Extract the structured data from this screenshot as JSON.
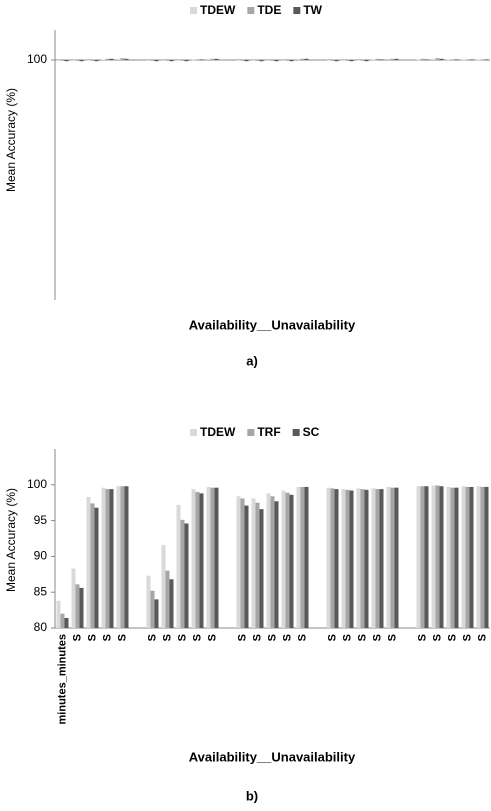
{
  "chart_data": [
    {
      "type": "bar",
      "label": "a)",
      "ylabel": "Mean Accuracy (%)",
      "xlabel": "Availability__Unavailability",
      "ylim": [
        96,
        100.5
      ],
      "yticks": [
        100
      ],
      "x_axis_crosses": 100,
      "categories": [
        null,
        null,
        null,
        null,
        null,
        null,
        null,
        null,
        null,
        null,
        null,
        null,
        null,
        null,
        null,
        null,
        null,
        null,
        null,
        null,
        null,
        null,
        null,
        null,
        null,
        null,
        null,
        null,
        null
      ],
      "series": [
        {
          "name": "TDEW",
          "color": "#d9d9d9",
          "values": [
            99.99,
            99.99,
            99.99,
            100.01,
            100.02,
            null,
            99.99,
            99.99,
            99.99,
            100.01,
            100.02,
            null,
            99.99,
            99.99,
            99.99,
            99.99,
            100.02,
            null,
            99.99,
            99.99,
            99.99,
            100.01,
            100.02,
            null,
            100.01,
            100.02,
            100.01,
            100.01,
            100.01
          ]
        },
        {
          "name": "TDE",
          "color": "#a6a6a6",
          "values": [
            99.99,
            99.99,
            99.99,
            100.02,
            100.03,
            null,
            99.99,
            99.99,
            99.99,
            100.01,
            100.02,
            null,
            99.99,
            99.99,
            99.99,
            99.99,
            100.02,
            null,
            99.99,
            99.99,
            99.99,
            100.02,
            100.02,
            null,
            100.02,
            100.03,
            100.01,
            100.01,
            100.01
          ]
        },
        {
          "name": "TW",
          "color": "#595959",
          "values": [
            99.98,
            99.98,
            99.98,
            100.02,
            100.02,
            null,
            99.98,
            99.98,
            99.98,
            100.01,
            100.02,
            null,
            99.98,
            99.98,
            99.98,
            99.98,
            100.02,
            null,
            99.98,
            99.98,
            99.98,
            100.01,
            100.02,
            null,
            100.01,
            100.02,
            100.01,
            100.01,
            100.01
          ]
        }
      ]
    },
    {
      "type": "bar",
      "label": "b)",
      "ylabel": "Mean Accuracy (%)",
      "xlabel": "Availability__Unavailability",
      "ylim": [
        80,
        105
      ],
      "yticks": [
        80,
        85,
        90,
        95,
        100
      ],
      "categories": [
        "minutes_minutes",
        "S",
        "S",
        "S",
        "S",
        null,
        "S",
        "S",
        "S",
        "S",
        "S",
        null,
        "S",
        "S",
        "S",
        "S",
        "S",
        null,
        "S",
        "S",
        "S",
        "S",
        "S",
        null,
        "S",
        "S",
        "S",
        "S",
        "S"
      ],
      "series": [
        {
          "name": "TDEW",
          "color": "#d9d9d9",
          "values": [
            83.8,
            88.3,
            98.3,
            99.6,
            99.8,
            null,
            87.3,
            91.6,
            97.2,
            99.4,
            99.7,
            null,
            98.4,
            98.1,
            98.8,
            99.2,
            99.7,
            null,
            99.6,
            99.4,
            99.5,
            99.5,
            99.7,
            null,
            99.8,
            99.9,
            99.7,
            99.8,
            99.8
          ]
        },
        {
          "name": "TRF",
          "color": "#a6a6a6",
          "values": [
            82.0,
            86.1,
            97.4,
            99.4,
            99.8,
            null,
            85.2,
            88.0,
            95.1,
            99.0,
            99.6,
            null,
            98.1,
            97.5,
            98.4,
            98.9,
            99.7,
            null,
            99.5,
            99.3,
            99.4,
            99.4,
            99.6,
            null,
            99.8,
            99.9,
            99.6,
            99.7,
            99.7
          ]
        },
        {
          "name": "SC",
          "color": "#595959",
          "values": [
            81.4,
            85.6,
            96.8,
            99.4,
            99.8,
            null,
            84.0,
            86.8,
            94.6,
            98.8,
            99.6,
            null,
            97.1,
            96.6,
            97.7,
            98.6,
            99.7,
            null,
            99.4,
            99.2,
            99.3,
            99.4,
            99.6,
            null,
            99.8,
            99.8,
            99.6,
            99.7,
            99.7
          ]
        }
      ]
    }
  ]
}
